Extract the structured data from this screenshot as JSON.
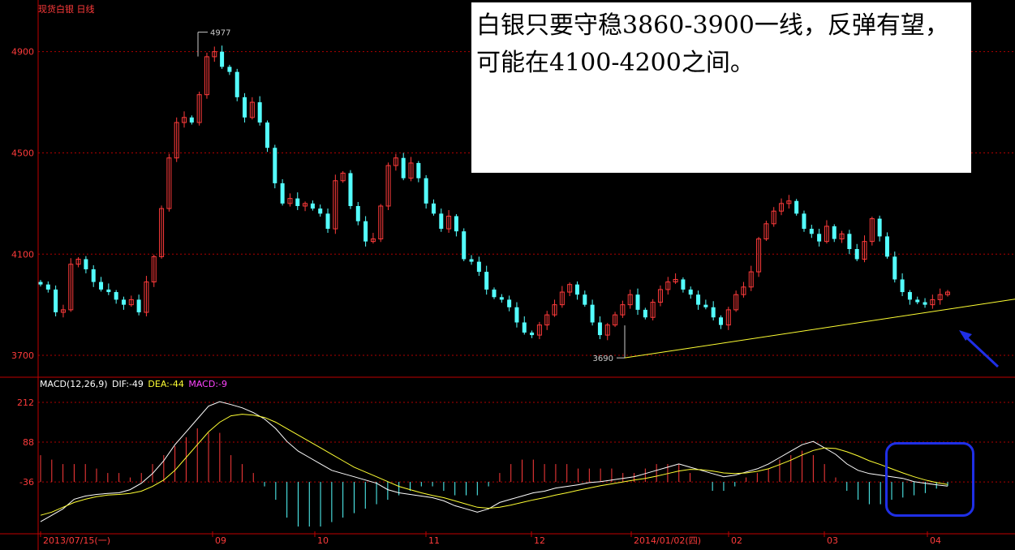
{
  "header": {
    "title": "现货白银",
    "period": "日线"
  },
  "annotation": {
    "text": "白银只要守稳3860-3900一线，反弹有望，可能在4100-4200之间。"
  },
  "colors": {
    "up": "#ff3b3b",
    "down": "#54ffff",
    "dif": "#ffffff",
    "dea": "#ffff33",
    "macd": "#ff44ff",
    "grid": "#b00000",
    "trendline": "#ffff33",
    "arrow": "#1f2fe6",
    "highlight": "#1f2fe6"
  },
  "macd_legend": {
    "name": "MACD(12,26,9)",
    "dif_label": "DIF:-49",
    "dea_label": "DEA:-44",
    "macd_label": "MACD:-9"
  },
  "chart_data": [
    {
      "type": "candlestick",
      "title": "现货白银 日线",
      "y_ticks": [
        3700,
        4100,
        4500,
        4900
      ],
      "ylim": [
        3620,
        5040
      ],
      "annotations": [
        {
          "label": "4977",
          "value": 4977,
          "kind": "high"
        },
        {
          "label": "3690",
          "value": 3690,
          "kind": "low"
        }
      ],
      "x_labels": [
        "2013/07/15(一)",
        "09",
        "10",
        "11",
        "12",
        "2014/01/02(四)",
        "02",
        "03",
        "04"
      ],
      "trendline": {
        "from_value": 3690,
        "to_value": 3890
      },
      "series": [
        {
          "name": "close_path",
          "values": [
            3980,
            3960,
            3870,
            3880,
            4060,
            4080,
            4040,
            3990,
            3960,
            3950,
            3920,
            3900,
            3920,
            3870,
            3990,
            4090,
            4280,
            4480,
            4620,
            4640,
            4620,
            4730,
            4880,
            4900,
            4840,
            4820,
            4720,
            4640,
            4700,
            4620,
            4520,
            4380,
            4300,
            4320,
            4290,
            4300,
            4280,
            4260,
            4200,
            4390,
            4420,
            4290,
            4230,
            4150,
            4160,
            4290,
            4450,
            4480,
            4400,
            4460,
            4400,
            4300,
            4260,
            4200,
            4250,
            4190,
            4080,
            4070,
            4030,
            3960,
            3930,
            3920,
            3890,
            3830,
            3790,
            3780,
            3820,
            3860,
            3900,
            3950,
            3980,
            3940,
            3900,
            3830,
            3780,
            3820,
            3860,
            3900,
            3940,
            3880,
            3850,
            3910,
            3960,
            3990,
            4000,
            3960,
            3940,
            3900,
            3890,
            3850,
            3820,
            3880,
            3940,
            3970,
            4030,
            4160,
            4220,
            4270,
            4300,
            4310,
            4260,
            4200,
            4180,
            4150,
            4210,
            4160,
            4180,
            4120,
            4080,
            4150,
            4240,
            4170,
            4090,
            4000,
            3950,
            3920,
            3910,
            3900,
            3920,
            3940,
            3950
          ]
        }
      ]
    },
    {
      "type": "macd",
      "y_ticks": [
        212,
        88,
        -36
      ],
      "ylim": [
        -190,
        265
      ],
      "series": [
        {
          "name": "DIF",
          "values": [
            -160,
            -140,
            -120,
            -90,
            -80,
            -75,
            -72,
            -70,
            -60,
            -40,
            -10,
            30,
            80,
            120,
            160,
            200,
            214,
            205,
            195,
            180,
            160,
            130,
            90,
            60,
            40,
            20,
            0,
            -10,
            -20,
            -30,
            -40,
            -60,
            -70,
            -75,
            -80,
            -85,
            -95,
            -110,
            -120,
            -130,
            -120,
            -100,
            -90,
            -80,
            -70,
            -65,
            -55,
            -50,
            -45,
            -38,
            -35,
            -30,
            -25,
            -20,
            -10,
            0,
            10,
            20,
            10,
            0,
            -10,
            -20,
            -15,
            -5,
            5,
            20,
            40,
            60,
            80,
            90,
            70,
            50,
            20,
            0,
            -10,
            -15,
            -20,
            -25,
            -35,
            -40,
            -45,
            -49
          ]
        },
        {
          "name": "DEA",
          "values": [
            -140,
            -130,
            -115,
            -100,
            -90,
            -82,
            -77,
            -75,
            -72,
            -65,
            -50,
            -30,
            0,
            40,
            80,
            120,
            150,
            170,
            175,
            172,
            165,
            150,
            130,
            110,
            90,
            70,
            50,
            30,
            10,
            -5,
            -20,
            -35,
            -50,
            -60,
            -70,
            -78,
            -85,
            -95,
            -105,
            -115,
            -118,
            -115,
            -108,
            -100,
            -92,
            -85,
            -77,
            -70,
            -62,
            -55,
            -48,
            -42,
            -36,
            -30,
            -25,
            -18,
            -10,
            -2,
            3,
            2,
            -2,
            -8,
            -10,
            -8,
            -3,
            5,
            18,
            32,
            48,
            62,
            70,
            68,
            58,
            45,
            30,
            18,
            5,
            -8,
            -20,
            -30,
            -38,
            -44
          ]
        },
        {
          "name": "MACD",
          "values": [
            60,
            50,
            40,
            40,
            40,
            30,
            20,
            20,
            10,
            20,
            40,
            60,
            80,
            100,
            120,
            110,
            110,
            60,
            40,
            20,
            -10,
            -40,
            -80,
            -100,
            -100,
            -100,
            -90,
            -80,
            -70,
            -60,
            -50,
            -40,
            -30,
            -20,
            -10,
            -10,
            -20,
            -30,
            -30,
            -30,
            -10,
            20,
            40,
            50,
            50,
            40,
            40,
            40,
            30,
            30,
            30,
            30,
            20,
            20,
            30,
            40,
            40,
            40,
            20,
            0,
            -20,
            -20,
            -10,
            10,
            20,
            30,
            50,
            60,
            70,
            60,
            40,
            10,
            -20,
            -40,
            -50,
            -50,
            -40,
            -35,
            -30,
            -25,
            -15,
            -9
          ]
        }
      ]
    }
  ]
}
